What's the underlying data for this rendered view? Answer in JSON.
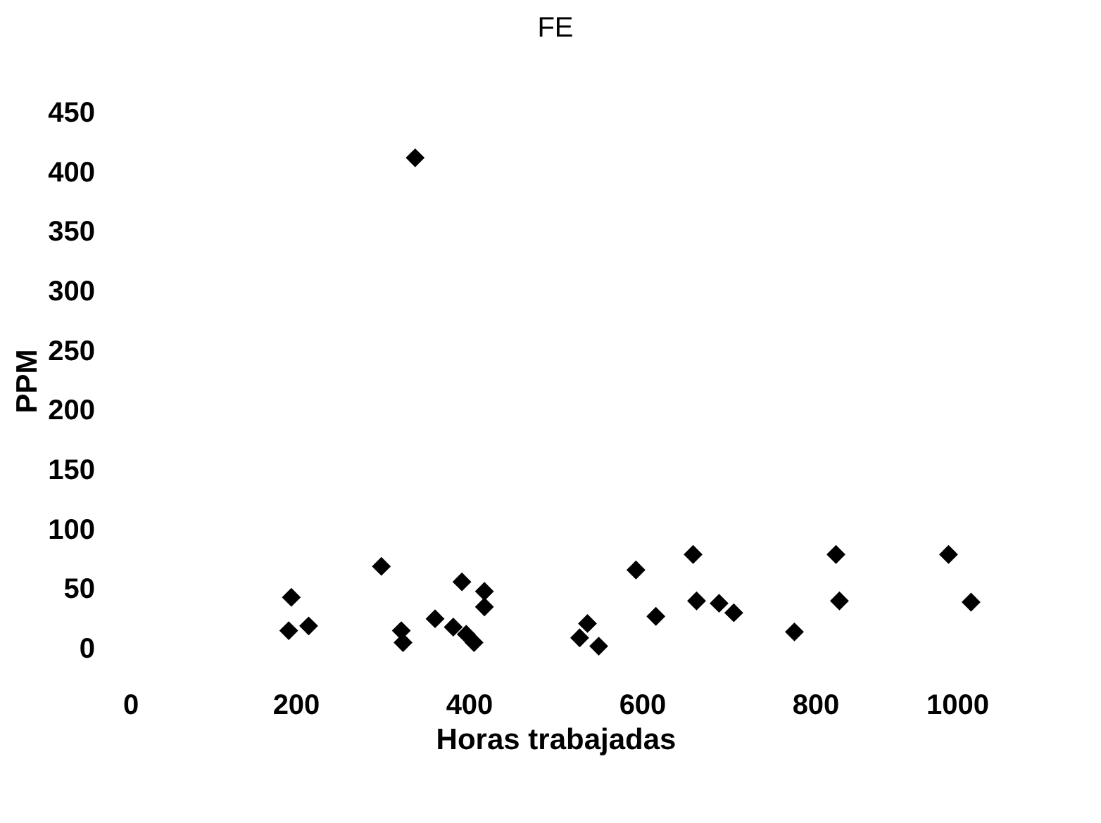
{
  "chart_data": {
    "type": "scatter",
    "title": "FE",
    "xlabel": "Horas trabajadas",
    "ylabel": "PPM",
    "marker": "diamond",
    "grid": false,
    "xlim": [
      0,
      1000
    ],
    "xticks": [
      0,
      200,
      400,
      600,
      800,
      1000
    ],
    "ylim": [
      0,
      450
    ],
    "yticks": [
      0,
      50,
      100,
      150,
      200,
      250,
      300,
      350,
      400,
      450
    ],
    "series": [
      {
        "color": "#000000",
        "x": [
          338,
          195,
          192,
          215,
          299,
          322,
          324,
          361,
          382,
          392,
          418,
          418,
          406,
          397,
          537,
          528,
          550,
          593,
          616,
          659,
          663,
          689,
          706,
          776,
          824,
          828,
          954,
          980
        ],
        "values": [
          412,
          43,
          15,
          19,
          69,
          15,
          5,
          25,
          18,
          56,
          48,
          35,
          5,
          12,
          21,
          9,
          2,
          66,
          27,
          79,
          40,
          38,
          30,
          14,
          79,
          40,
          79,
          39
        ]
      }
    ]
  }
}
